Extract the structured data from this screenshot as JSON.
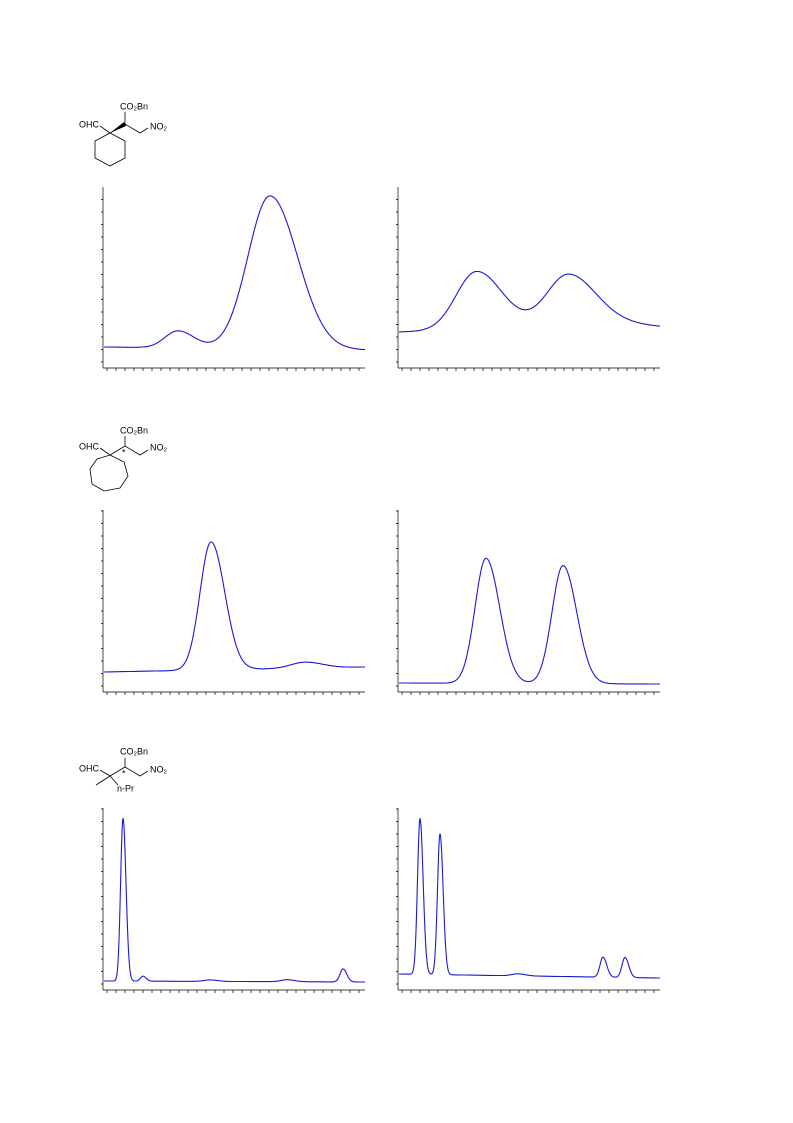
{
  "compounds": [
    {
      "ester": "CO₂Bn",
      "aldehyde": "OHC",
      "nitro": "NO₂"
    },
    {
      "ester": "CO₂Bn",
      "aldehyde": "OHC",
      "nitro": "NO₂",
      "stereo": "*"
    },
    {
      "ester": "CO₂Bn",
      "aldehyde": "OHC",
      "nitro": "NO₂",
      "stereo": "*",
      "substituent": "n-Pr"
    }
  ]
}
